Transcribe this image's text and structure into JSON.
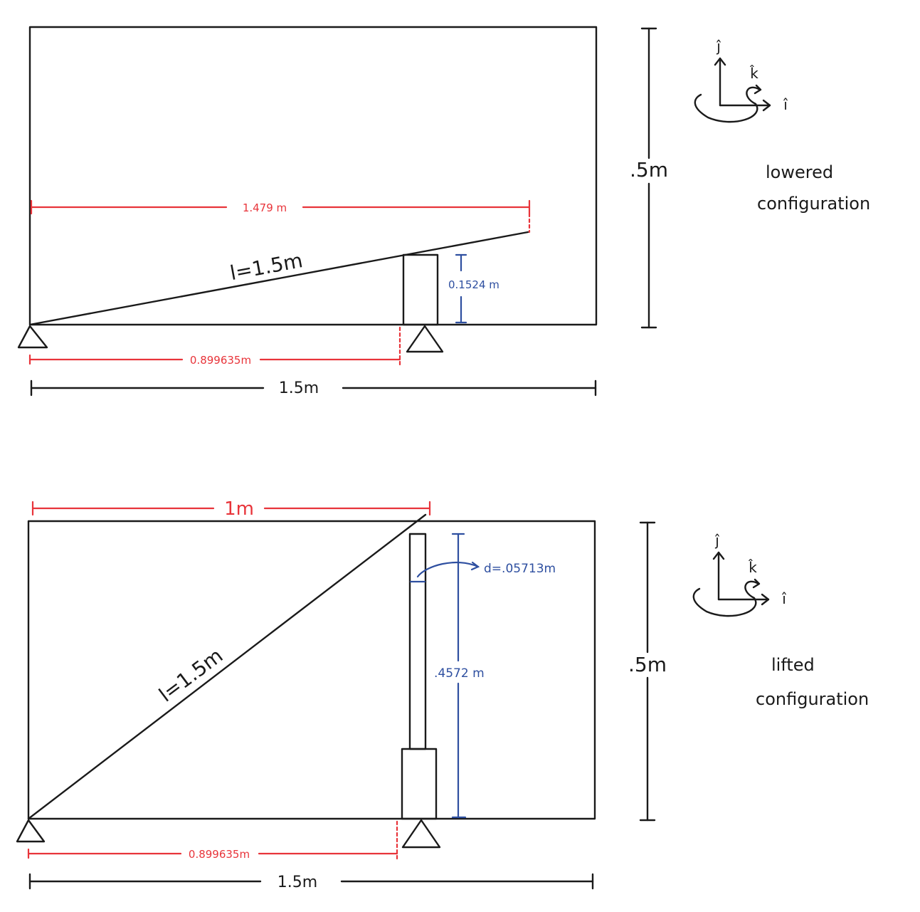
{
  "lowered": {
    "caption_line1": "lowered",
    "caption_line2": "configuration",
    "beam_length": "l=1.5m",
    "horizontal_projection": "1.479 m",
    "post_height": "0.1524 m",
    "support_distance": "0.899635m",
    "width": "1.5m",
    "height": ".5m"
  },
  "lifted": {
    "caption_line1": "lifted",
    "caption_line2": "configuration",
    "beam_length": "l=1.5m",
    "horizontal_projection": "1m",
    "post_height": ".4572 m",
    "post_diameter": "d=.05713m",
    "support_distance": "0.899635m",
    "width": "1.5m",
    "height": ".5m"
  },
  "axes": {
    "j": "ĵ",
    "k": "k̂",
    "i": "î"
  },
  "colors": {
    "ink": "#1a1a1a",
    "red": "#e8343a",
    "blue": "#2e4fa0"
  }
}
